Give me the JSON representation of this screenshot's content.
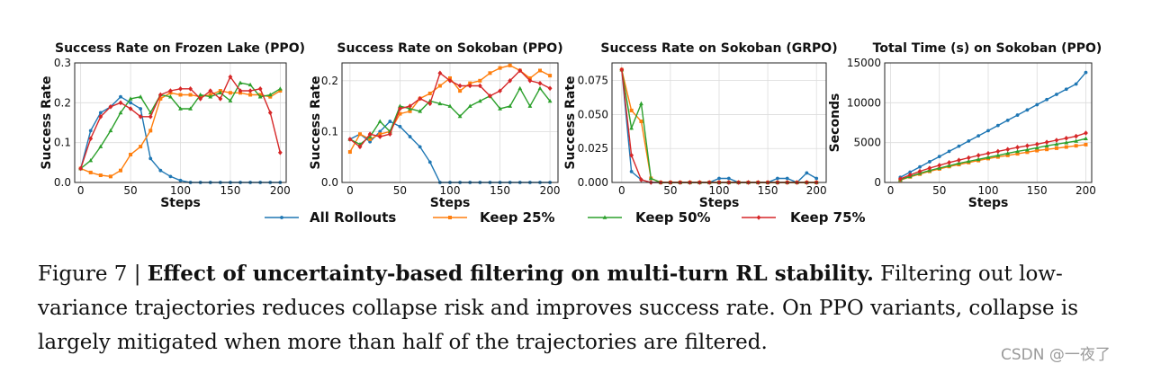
{
  "chart_data": [
    {
      "type": "line",
      "title": "Success Rate on Frozen Lake (PPO)",
      "xlabel": "Steps",
      "ylabel": "Success Rate",
      "xlim": [
        -6,
        206
      ],
      "ylim": [
        0,
        0.3
      ],
      "xticks": [
        0,
        50,
        100,
        150,
        200
      ],
      "yticks": [
        0.0,
        0.1,
        0.2,
        0.3
      ],
      "ytick_labels": [
        "0.0",
        "0.1",
        "0.2",
        "0.3"
      ],
      "grid": true,
      "x": [
        0,
        10,
        20,
        30,
        40,
        50,
        60,
        70,
        80,
        90,
        100,
        110,
        120,
        130,
        140,
        150,
        160,
        170,
        180,
        190,
        200
      ],
      "series": [
        {
          "name": "All Rollouts",
          "values": [
            0.035,
            0.13,
            0.175,
            0.19,
            0.215,
            0.2,
            0.185,
            0.06,
            0.03,
            0.015,
            0.005,
            0.0,
            0.0,
            0.0,
            0.0,
            0.0,
            0.0,
            0.0,
            0.0,
            0.0,
            0.0
          ]
        },
        {
          "name": "Keep 25%",
          "values": [
            0.035,
            0.025,
            0.018,
            0.015,
            0.03,
            0.07,
            0.09,
            0.13,
            0.21,
            0.225,
            0.22,
            0.22,
            0.215,
            0.22,
            0.23,
            0.225,
            0.225,
            0.22,
            0.22,
            0.215,
            0.23
          ]
        },
        {
          "name": "Keep 50%",
          "values": [
            0.035,
            0.055,
            0.09,
            0.13,
            0.175,
            0.21,
            0.215,
            0.175,
            0.22,
            0.215,
            0.185,
            0.185,
            0.22,
            0.215,
            0.225,
            0.205,
            0.25,
            0.245,
            0.215,
            0.22,
            0.235
          ]
        },
        {
          "name": "Keep 75%",
          "values": [
            0.035,
            0.11,
            0.165,
            0.19,
            0.2,
            0.185,
            0.165,
            0.165,
            0.22,
            0.23,
            0.235,
            0.235,
            0.21,
            0.23,
            0.21,
            0.265,
            0.23,
            0.23,
            0.235,
            0.175,
            0.075
          ]
        }
      ]
    },
    {
      "type": "line",
      "title": "Success Rate on Sokoban (PPO)",
      "xlabel": "Steps",
      "ylabel": "Success Rate",
      "xlim": [
        -8,
        208
      ],
      "ylim": [
        0,
        0.235
      ],
      "xticks": [
        0,
        50,
        100,
        150,
        200
      ],
      "yticks": [
        0.0,
        0.1,
        0.2
      ],
      "ytick_labels": [
        "0.0",
        "0.1",
        "0.2"
      ],
      "grid": true,
      "x": [
        0,
        10,
        20,
        30,
        40,
        50,
        60,
        70,
        80,
        90,
        100,
        110,
        120,
        130,
        140,
        150,
        160,
        170,
        180,
        190,
        200
      ],
      "series": [
        {
          "name": "All Rollouts",
          "values": [
            0.085,
            0.095,
            0.08,
            0.1,
            0.12,
            0.11,
            0.09,
            0.07,
            0.04,
            0.0,
            0.0,
            0.0,
            0.0,
            0.0,
            0.0,
            0.0,
            0.0,
            0.0,
            0.0,
            0.0,
            0.0
          ]
        },
        {
          "name": "Keep 25%",
          "values": [
            0.06,
            0.095,
            0.085,
            0.095,
            0.1,
            0.135,
            0.14,
            0.165,
            0.175,
            0.19,
            0.205,
            0.18,
            0.195,
            0.2,
            0.215,
            0.225,
            0.23,
            0.22,
            0.205,
            0.22,
            0.21
          ]
        },
        {
          "name": "Keep 50%",
          "values": [
            0.085,
            0.075,
            0.09,
            0.12,
            0.1,
            0.15,
            0.145,
            0.14,
            0.16,
            0.155,
            0.15,
            0.13,
            0.15,
            0.16,
            0.17,
            0.145,
            0.15,
            0.185,
            0.15,
            0.185,
            0.16
          ]
        },
        {
          "name": "Keep 75%",
          "values": [
            0.085,
            0.07,
            0.095,
            0.09,
            0.095,
            0.145,
            0.15,
            0.165,
            0.155,
            0.215,
            0.2,
            0.19,
            0.19,
            0.19,
            0.17,
            0.18,
            0.2,
            0.22,
            0.2,
            0.195,
            0.185
          ]
        }
      ]
    },
    {
      "type": "line",
      "title": "Success Rate on Sokoban (GRPO)",
      "xlabel": "Steps",
      "ylabel": "Success Rate",
      "xlim": [
        -10,
        210
      ],
      "ylim": [
        0,
        0.088
      ],
      "xticks": [
        0,
        50,
        100,
        150,
        200
      ],
      "yticks": [
        0.0,
        0.025,
        0.05,
        0.075
      ],
      "ytick_labels": [
        "0.000",
        "0.025",
        "0.050",
        "0.075"
      ],
      "grid": true,
      "x": [
        0,
        10,
        20,
        30,
        40,
        50,
        60,
        70,
        80,
        90,
        100,
        110,
        120,
        130,
        140,
        150,
        160,
        170,
        180,
        190,
        200
      ],
      "series": [
        {
          "name": "All Rollouts",
          "values": [
            0.083,
            0.008,
            0.002,
            0.0,
            0.0,
            0.0,
            0.0,
            0.0,
            0.0,
            0.0,
            0.003,
            0.003,
            0.0,
            0.0,
            0.0,
            0.0,
            0.003,
            0.003,
            0.0,
            0.007,
            0.003
          ]
        },
        {
          "name": "Keep 25%",
          "values": [
            0.083,
            0.053,
            0.045,
            0.003,
            0.0,
            0.0,
            0.0,
            0.0,
            0.0,
            0.0,
            0.0,
            0.0,
            0.0,
            0.0,
            0.0,
            0.0,
            0.0,
            0.0,
            0.0,
            0.0,
            0.0
          ]
        },
        {
          "name": "Keep 50%",
          "values": [
            0.083,
            0.04,
            0.058,
            0.003,
            0.0,
            0.0,
            0.0,
            0.0,
            0.0,
            0.0,
            0.0,
            0.0,
            0.0,
            0.0,
            0.0,
            0.0,
            0.0,
            0.0,
            0.0,
            0.0,
            0.0
          ]
        },
        {
          "name": "Keep 75%",
          "values": [
            0.083,
            0.02,
            0.002,
            0.0,
            0.0,
            0.0,
            0.0,
            0.0,
            0.0,
            0.0,
            0.0,
            0.0,
            0.0,
            0.0,
            0.0,
            0.0,
            0.0,
            0.0,
            0.0,
            0.0,
            0.0
          ]
        }
      ]
    },
    {
      "type": "line",
      "title": "Total Time (s) on Sokoban (PPO)",
      "xlabel": "Steps",
      "ylabel": "Seconds",
      "xlim": [
        -6,
        206
      ],
      "ylim": [
        0,
        15000
      ],
      "xticks": [
        0,
        50,
        100,
        150,
        200
      ],
      "yticks": [
        0,
        5000,
        10000,
        15000
      ],
      "ytick_labels": [
        "0",
        "5000",
        "10000",
        "15000"
      ],
      "grid": true,
      "x": [
        10,
        20,
        30,
        40,
        50,
        60,
        70,
        80,
        90,
        100,
        110,
        120,
        130,
        140,
        150,
        160,
        170,
        180,
        190,
        200
      ],
      "series": [
        {
          "name": "All Rollouts",
          "values": [
            650,
            1300,
            1950,
            2600,
            3250,
            3900,
            4550,
            5200,
            5850,
            6500,
            7150,
            7800,
            8450,
            9100,
            9750,
            10400,
            11050,
            11700,
            12350,
            13800
          ]
        },
        {
          "name": "Keep 25%",
          "values": [
            300,
            700,
            1050,
            1400,
            1700,
            2000,
            2250,
            2500,
            2750,
            3000,
            3200,
            3400,
            3600,
            3800,
            4000,
            4150,
            4300,
            4450,
            4600,
            4750
          ]
        },
        {
          "name": "Keep 50%",
          "values": [
            350,
            750,
            1150,
            1500,
            1800,
            2100,
            2400,
            2650,
            2900,
            3150,
            3400,
            3650,
            3900,
            4100,
            4350,
            4600,
            4800,
            5000,
            5200,
            5500
          ]
        },
        {
          "name": "Keep 75%",
          "values": [
            450,
            950,
            1400,
            1800,
            2150,
            2500,
            2800,
            3100,
            3400,
            3650,
            3900,
            4150,
            4400,
            4600,
            4800,
            5050,
            5300,
            5550,
            5800,
            6200
          ]
        }
      ]
    }
  ],
  "legend": [
    {
      "name": "All Rollouts",
      "color": "#1f77b4",
      "marker": "circle"
    },
    {
      "name": "Keep 25%",
      "color": "#ff7f0e",
      "marker": "square"
    },
    {
      "name": "Keep 50%",
      "color": "#2ca02c",
      "marker": "triangle"
    },
    {
      "name": "Keep 75%",
      "color": "#d62728",
      "marker": "diamond"
    }
  ],
  "colors": {
    "All Rollouts": "#1f77b4",
    "Keep 25%": "#ff7f0e",
    "Keep 50%": "#2ca02c",
    "Keep 75%": "#d62728"
  },
  "caption": {
    "label": "Figure 7 | ",
    "bold": "Effect of uncertainty-based filtering on multi-turn RL stability.",
    "text": " Filtering out low-variance trajectories reduces collapse risk and improves success rate. On PPO variants, collapse is largely mitigated when more than half of the trajectories are filtered."
  },
  "watermark": "CSDN @一夜了"
}
